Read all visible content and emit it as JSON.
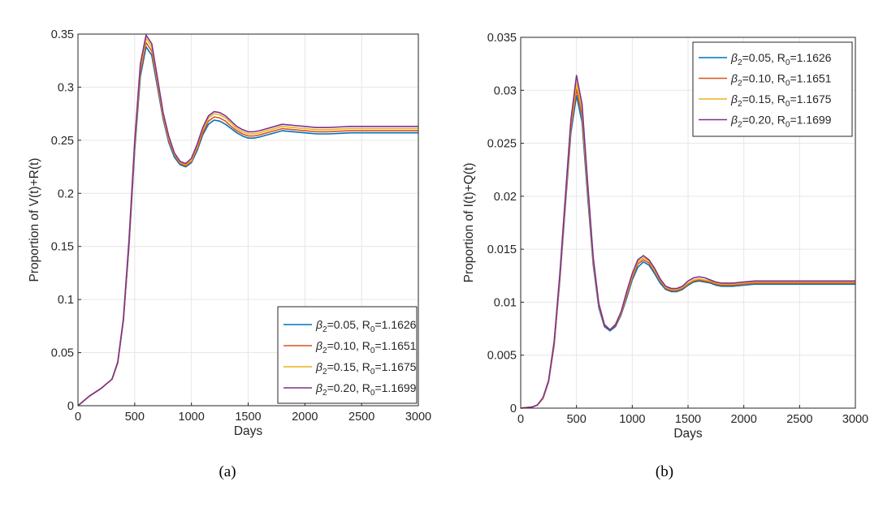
{
  "chart_data": [
    {
      "type": "line",
      "panel": "(a)",
      "xlabel": "Days",
      "ylabel": "Proportion of V(t)+R(t)",
      "xlim": [
        0,
        3000
      ],
      "ylim": [
        0,
        0.35
      ],
      "xticks": [
        0,
        500,
        1000,
        1500,
        2000,
        2500,
        3000
      ],
      "yticks": [
        0,
        0.05,
        0.1,
        0.15,
        0.2,
        0.25,
        0.3,
        0.35
      ],
      "ytick_labels": [
        "0",
        "0.05",
        "0.1",
        "0.15",
        "0.2",
        "0.25",
        "0.3",
        "0.35"
      ],
      "grid": true,
      "legend_position": "bottom-right",
      "x": [
        0,
        100,
        200,
        300,
        350,
        400,
        450,
        500,
        550,
        600,
        650,
        700,
        750,
        800,
        850,
        900,
        950,
        1000,
        1050,
        1100,
        1150,
        1200,
        1250,
        1300,
        1350,
        1400,
        1450,
        1500,
        1550,
        1600,
        1700,
        1800,
        1900,
        2000,
        2100,
        2200,
        2300,
        2400,
        2500,
        2600,
        2700,
        2800,
        2900,
        3000
      ],
      "series": [
        {
          "name": "β2=0.05, R0=1.1626",
          "beta": "0.05",
          "r0": "1.1626",
          "values": [
            0,
            0.009,
            0.016,
            0.025,
            0.04,
            0.08,
            0.15,
            0.24,
            0.31,
            0.338,
            0.33,
            0.3,
            0.27,
            0.248,
            0.234,
            0.227,
            0.225,
            0.229,
            0.24,
            0.255,
            0.265,
            0.269,
            0.268,
            0.265,
            0.261,
            0.257,
            0.254,
            0.252,
            0.252,
            0.253,
            0.256,
            0.259,
            0.258,
            0.257,
            0.256,
            0.256,
            0.2565,
            0.257,
            0.257,
            0.257,
            0.257,
            0.257,
            0.257,
            0.257
          ]
        },
        {
          "name": "β2=0.10,  R0=1.1651",
          "beta": "0.10",
          "r0": "1.1651",
          "values": [
            0,
            0.009,
            0.016,
            0.025,
            0.04,
            0.08,
            0.152,
            0.243,
            0.314,
            0.342,
            0.334,
            0.303,
            0.272,
            0.25,
            0.236,
            0.228,
            0.226,
            0.23,
            0.242,
            0.257,
            0.268,
            0.272,
            0.271,
            0.268,
            0.263,
            0.259,
            0.256,
            0.254,
            0.254,
            0.255,
            0.258,
            0.261,
            0.26,
            0.259,
            0.258,
            0.258,
            0.2585,
            0.259,
            0.259,
            0.259,
            0.259,
            0.259,
            0.259,
            0.259
          ]
        },
        {
          "name": "β2=0.15, R0=1.1675",
          "beta": "0.15",
          "r0": "1.1675",
          "values": [
            0,
            0.009,
            0.016,
            0.025,
            0.04,
            0.081,
            0.154,
            0.246,
            0.318,
            0.346,
            0.338,
            0.306,
            0.274,
            0.252,
            0.237,
            0.229,
            0.227,
            0.231,
            0.244,
            0.26,
            0.271,
            0.275,
            0.274,
            0.271,
            0.266,
            0.261,
            0.258,
            0.256,
            0.256,
            0.257,
            0.26,
            0.263,
            0.262,
            0.261,
            0.26,
            0.26,
            0.2605,
            0.261,
            0.261,
            0.261,
            0.261,
            0.261,
            0.261,
            0.261
          ]
        },
        {
          "name": "β2=0.20,  R0=1.1699",
          "beta": "0.20",
          "r0": "1.1699",
          "values": [
            0,
            0.009,
            0.016,
            0.025,
            0.041,
            0.082,
            0.156,
            0.249,
            0.322,
            0.349,
            0.341,
            0.309,
            0.276,
            0.254,
            0.238,
            0.23,
            0.228,
            0.233,
            0.246,
            0.262,
            0.273,
            0.277,
            0.276,
            0.273,
            0.268,
            0.263,
            0.26,
            0.258,
            0.258,
            0.259,
            0.262,
            0.265,
            0.264,
            0.263,
            0.262,
            0.262,
            0.2625,
            0.263,
            0.263,
            0.263,
            0.263,
            0.263,
            0.263,
            0.263
          ]
        }
      ]
    },
    {
      "type": "line",
      "panel": "(b)",
      "xlabel": "Days",
      "ylabel": "Proportion of I(t)+Q(t)",
      "xlim": [
        0,
        3000
      ],
      "ylim": [
        0,
        0.035
      ],
      "xticks": [
        0,
        500,
        1000,
        1500,
        2000,
        2500,
        3000
      ],
      "yticks": [
        0,
        0.005,
        0.01,
        0.015,
        0.02,
        0.025,
        0.03,
        0.035
      ],
      "ytick_labels": [
        "0",
        "0.005",
        "0.01",
        "0.015",
        "0.02",
        "0.025",
        "0.03",
        "0.035"
      ],
      "grid": true,
      "legend_position": "top-right",
      "x": [
        0,
        100,
        150,
        200,
        250,
        300,
        350,
        400,
        450,
        500,
        550,
        600,
        650,
        700,
        750,
        800,
        850,
        900,
        950,
        1000,
        1050,
        1100,
        1150,
        1200,
        1250,
        1300,
        1350,
        1400,
        1450,
        1500,
        1550,
        1600,
        1650,
        1700,
        1750,
        1800,
        1900,
        2000,
        2100,
        2200,
        2300,
        2400,
        2500,
        2600,
        2700,
        2800,
        2900,
        3000
      ],
      "series": [
        {
          "name": "β2=0.05, R0=1.1626",
          "beta": "0.05",
          "r0": "1.1626",
          "values": [
            0,
            0.0001,
            0.0003,
            0.0009,
            0.0025,
            0.006,
            0.012,
            0.019,
            0.026,
            0.0295,
            0.027,
            0.02,
            0.0135,
            0.0095,
            0.0077,
            0.0073,
            0.0077,
            0.0088,
            0.0104,
            0.0121,
            0.0133,
            0.0138,
            0.0135,
            0.0127,
            0.0118,
            0.0112,
            0.011,
            0.011,
            0.0112,
            0.0116,
            0.0119,
            0.012,
            0.0119,
            0.0118,
            0.0116,
            0.0115,
            0.0115,
            0.0116,
            0.0117,
            0.0117,
            0.0117,
            0.0117,
            0.0117,
            0.0117,
            0.0117,
            0.0117,
            0.0117,
            0.0117
          ]
        },
        {
          "name": "β2=0.10,  R0=1.1651",
          "beta": "0.10",
          "r0": "1.1651",
          "values": [
            0,
            0.0001,
            0.0003,
            0.0009,
            0.0025,
            0.006,
            0.0122,
            0.0193,
            0.0264,
            0.0301,
            0.0276,
            0.0205,
            0.0138,
            0.0097,
            0.0078,
            0.0074,
            0.0078,
            0.0089,
            0.0106,
            0.0123,
            0.0136,
            0.014,
            0.0137,
            0.0129,
            0.012,
            0.0113,
            0.0111,
            0.0111,
            0.0113,
            0.0117,
            0.012,
            0.0121,
            0.012,
            0.0119,
            0.0117,
            0.0116,
            0.0116,
            0.0117,
            0.0118,
            0.0118,
            0.0118,
            0.0118,
            0.0118,
            0.0118,
            0.0118,
            0.0118,
            0.0118,
            0.0118
          ]
        },
        {
          "name": "β2=0.15, R0=1.1675",
          "beta": "0.15",
          "r0": "1.1675",
          "values": [
            0,
            0.0001,
            0.0003,
            0.0009,
            0.0026,
            0.0062,
            0.0124,
            0.0196,
            0.0268,
            0.0307,
            0.0281,
            0.0209,
            0.014,
            0.0098,
            0.0079,
            0.0074,
            0.0079,
            0.009,
            0.0108,
            0.0125,
            0.0138,
            0.0142,
            0.0139,
            0.013,
            0.0121,
            0.0114,
            0.0112,
            0.0112,
            0.0114,
            0.0118,
            0.0121,
            0.0122,
            0.0121,
            0.012,
            0.0118,
            0.0117,
            0.0117,
            0.0118,
            0.0119,
            0.0119,
            0.0119,
            0.0119,
            0.0119,
            0.0119,
            0.0119,
            0.0119,
            0.0119,
            0.0119
          ]
        },
        {
          "name": "β2=0.20,  R0=1.1699",
          "beta": "0.20",
          "r0": "1.1699",
          "values": [
            0,
            0.0001,
            0.0003,
            0.001,
            0.0026,
            0.0063,
            0.0126,
            0.0199,
            0.0272,
            0.0314,
            0.0287,
            0.0213,
            0.0142,
            0.0099,
            0.0079,
            0.0074,
            0.0079,
            0.0091,
            0.011,
            0.0127,
            0.014,
            0.0144,
            0.014,
            0.0132,
            0.0122,
            0.0115,
            0.0113,
            0.0113,
            0.0115,
            0.012,
            0.0123,
            0.0124,
            0.0123,
            0.0121,
            0.0119,
            0.0118,
            0.0118,
            0.0119,
            0.012,
            0.012,
            0.012,
            0.012,
            0.012,
            0.012,
            0.012,
            0.012,
            0.012,
            0.012
          ]
        }
      ]
    }
  ],
  "colors": [
    "#0072bd",
    "#d95319",
    "#edb120",
    "#7e2f8e"
  ],
  "legend_text": {
    "beta_symbol": "β",
    "beta_subscript": "2",
    "r_symbol": "R",
    "r_subscript": "0"
  }
}
